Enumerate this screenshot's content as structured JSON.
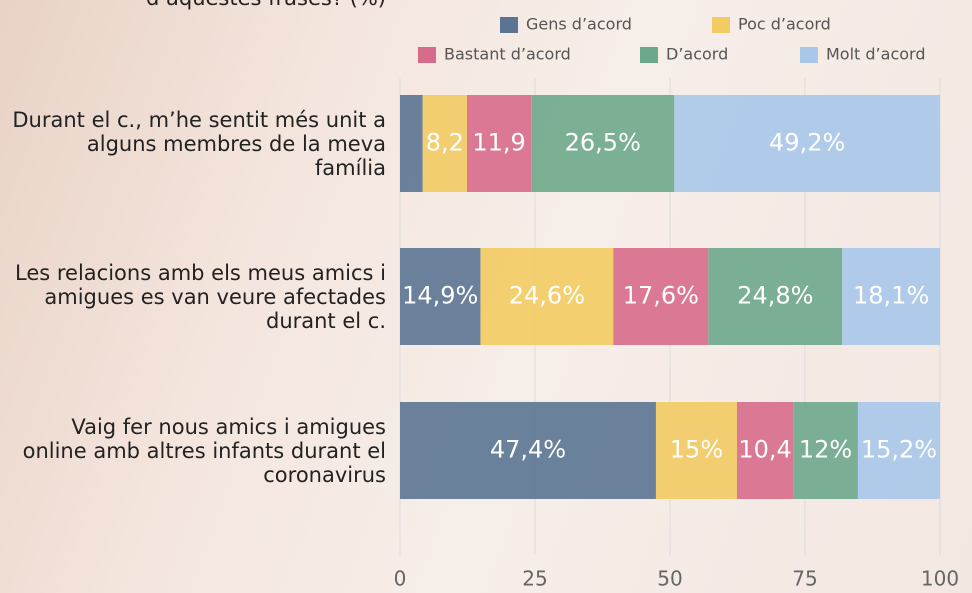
{
  "chart_data": {
    "type": "stacked-bar-horizontal",
    "title": "d’aquestes frases? (%)",
    "categories": [
      "Durant el c., m’he sentit més unit a alguns membres de la meva família",
      "Les relacions amb els meus amics i amigues es van veure afectades durant el c.",
      "Vaig fer nous amics i amigues online amb altres infants durant el coronavirus"
    ],
    "series": [
      {
        "name": "Gens d’acord",
        "color": "#5b7492",
        "values": [
          4.2,
          14.9,
          47.4
        ],
        "value_labels": [
          null,
          "14,9%",
          "47,4%"
        ]
      },
      {
        "name": "Poc d’acord",
        "color": "#f3cb63",
        "values": [
          8.2,
          24.6,
          15
        ],
        "value_labels": [
          "8,2",
          "24,6%",
          "15%"
        ]
      },
      {
        "name": "Bastant d’acord",
        "color": "#d86b8b",
        "values": [
          11.9,
          17.6,
          10.4
        ],
        "value_labels": [
          "11,9",
          "17,6%",
          "10,4"
        ]
      },
      {
        "name": "D’acord",
        "color": "#6ea88c",
        "values": [
          26.5,
          24.8,
          12
        ],
        "value_labels": [
          "26,5%",
          "24,8%",
          "12%"
        ]
      },
      {
        "name": "Molt d’acord",
        "color": "#a9c8e9",
        "values": [
          49.2,
          18.1,
          15.2
        ],
        "value_labels": [
          "49,2%",
          "18,1%",
          "15,2%"
        ]
      }
    ],
    "xlim": [
      0,
      100
    ],
    "xticks": [
      0,
      25,
      50,
      75,
      100
    ],
    "grid": true
  }
}
